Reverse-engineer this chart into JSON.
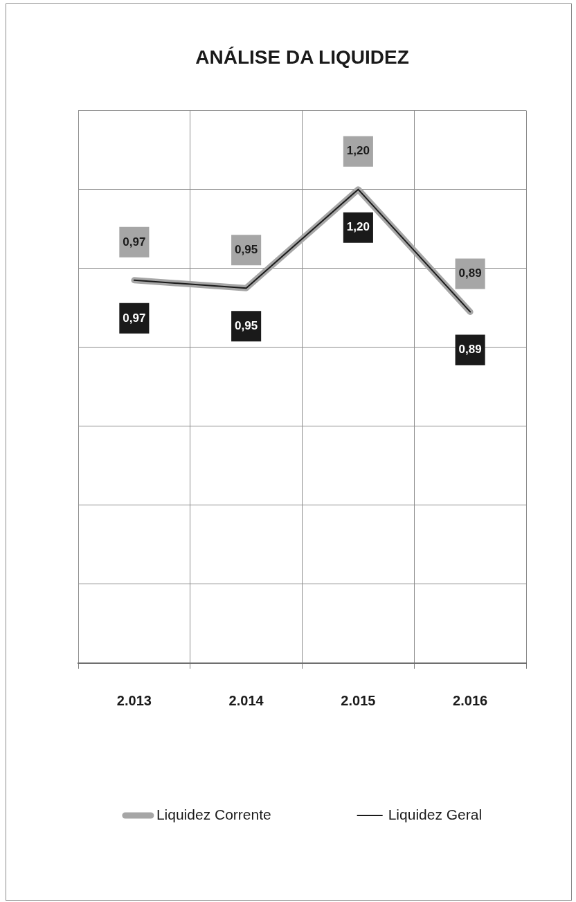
{
  "chart_data": {
    "type": "line",
    "title": "ANÁLISE DA LIQUIDEZ",
    "categories": [
      "2.013",
      "2.014",
      "2.015",
      "2.016"
    ],
    "series": [
      {
        "name": "Liquidez Corrente",
        "color": "#a6a6a6",
        "values": [
          0.97,
          0.95,
          1.2,
          0.89
        ],
        "value_labels": [
          "0,97",
          "0,95",
          "1,20",
          "0,89"
        ]
      },
      {
        "name": "Liquidez Geral",
        "color": "#1a1a1a",
        "values": [
          0.97,
          0.95,
          1.2,
          0.89
        ],
        "value_labels": [
          "0,97",
          "0,95",
          "1,20",
          "0,89"
        ]
      }
    ],
    "ylim": [
      0,
      1.4
    ],
    "yticks": [
      {
        "value": 0,
        "label": null
      },
      {
        "value": 0.2,
        "label": null
      },
      {
        "value": 0.4,
        "label": null
      },
      {
        "value": 0.6,
        "label": null
      },
      {
        "value": 0.8,
        "label": null
      },
      {
        "value": 1,
        "label": null
      },
      {
        "value": 1.2,
        "label": null
      },
      {
        "value": 1.4,
        "label": null
      }
    ],
    "tick_labels": "x",
    "grid": true,
    "legend": "bottom",
    "marker": "none",
    "line_style": "solid"
  }
}
